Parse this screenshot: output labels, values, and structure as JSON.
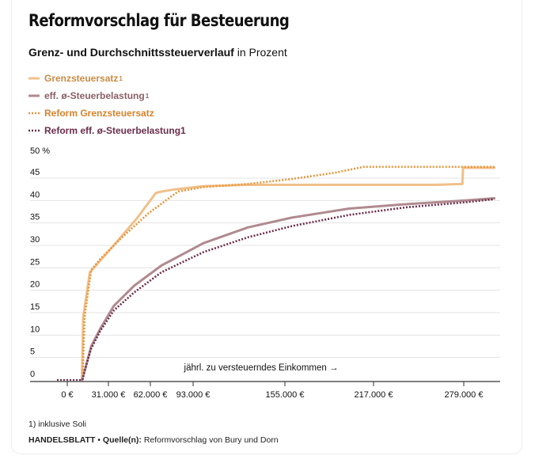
{
  "header": {
    "title": "Reformvorschlag für Besteuerung",
    "subtitle_bold": "Grenz- und Durchschnittssteuerverlauf",
    "subtitle_rest": " in Prozent"
  },
  "legend": [
    {
      "label": "Grenzsteuersatz",
      "sup": "1",
      "color": "#f0c08a",
      "style": "solid"
    },
    {
      "label": "eff. ø-Steuerbelastung",
      "sup": "1",
      "color": "#b08a90",
      "style": "solid"
    },
    {
      "label": "Reform Grenzsteuersatz",
      "sup": "",
      "color": "#e8963a",
      "style": "dotted"
    },
    {
      "label": "Reform eff. ø-Steuerbelastung1",
      "sup": "",
      "color": "#6b2d4a",
      "style": "dotted"
    }
  ],
  "chart_data": {
    "type": "line",
    "y_unit_label": "50 %",
    "y_ticks": [
      0,
      5,
      10,
      15,
      20,
      25,
      30,
      35,
      40,
      45
    ],
    "ylim": [
      0,
      50
    ],
    "x_ticks": [
      0,
      31000,
      62000,
      93000,
      155000,
      217000,
      279000
    ],
    "x_tick_labels": [
      "0 €",
      "31.000 €",
      "62.000 €",
      "93.000 €",
      "155.000 €",
      "217.000 €",
      "279.000 €"
    ],
    "xlim": [
      -20000,
      305000
    ],
    "x_annotation": "jährl. zu versteuerndes Einkommen →",
    "grid": true,
    "series": [
      {
        "name": "Grenzsteuersatz",
        "color": "#f0c08a",
        "style": "solid",
        "x": [
          11000,
          12000,
          17000,
          35000,
          52000,
          66000,
          70000,
          80000,
          100000,
          130000,
          150000,
          200000,
          260000,
          278000,
          278500,
          300000
        ],
        "y": [
          0,
          14,
          24,
          30,
          36,
          41.7,
          42,
          42.5,
          43.2,
          43.5,
          43.5,
          43.5,
          43.5,
          43.7,
          47.3,
          47.3
        ]
      },
      {
        "name": "eff. ø-Steuerbelastung",
        "color": "#b08a90",
        "style": "solid",
        "x": [
          11000,
          14000,
          18000,
          25000,
          35000,
          50000,
          70000,
          100000,
          130000,
          160000,
          200000,
          240000,
          280000,
          300000
        ],
        "y": [
          0,
          3,
          7.5,
          11.5,
          16.5,
          21,
          25.5,
          30.5,
          34,
          36.2,
          38.2,
          39.2,
          40,
          40.5
        ]
      },
      {
        "name": "Reform Grenzsteuersatz",
        "color": "#e8963a",
        "style": "dotted",
        "x": [
          11500,
          13000,
          18000,
          25000,
          40000,
          60000,
          82000,
          100000,
          130000,
          160000,
          190000,
          210000,
          260000,
          300000
        ],
        "y": [
          0,
          14,
          24.5,
          27,
          31.5,
          37,
          42,
          43,
          43.7,
          44.8,
          46.2,
          47.5,
          47.5,
          47.5
        ]
      },
      {
        "name": "Reform eff. ø-Steuerbelastung1",
        "color": "#6b2d4a",
        "style": "dotted",
        "x": [
          11500,
          14000,
          18000,
          25000,
          35000,
          50000,
          70000,
          100000,
          130000,
          160000,
          200000,
          240000,
          280000,
          300000
        ],
        "y": [
          0,
          3,
          7,
          11,
          15.5,
          19.5,
          24,
          28.5,
          31.8,
          34.3,
          36.8,
          38.5,
          39.6,
          40.3
        ]
      }
    ]
  },
  "footnote": "1) inklusive Soli",
  "source": {
    "brand": "HANDELSBLATT",
    "separator": " • ",
    "label": "Quelle(n):",
    "text": " Reformvorschlag von Bury und Dorn"
  }
}
